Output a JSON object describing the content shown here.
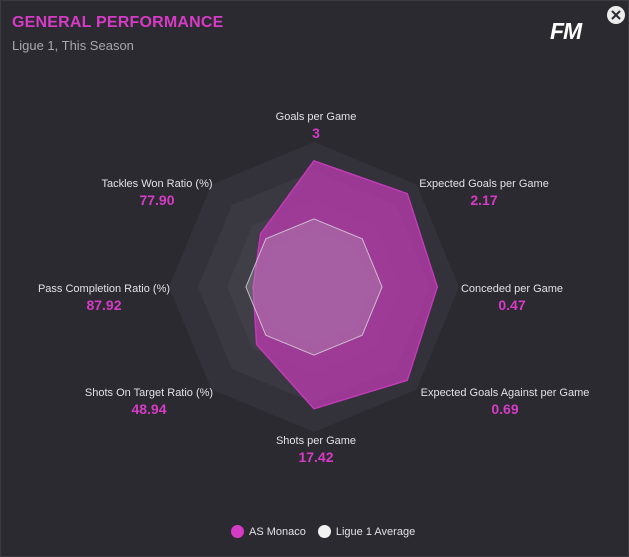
{
  "header": {
    "title": "GENERAL PERFORMANCE",
    "subtitle": "Ligue 1, This Season",
    "logo": "FM",
    "close_icon": "close-icon"
  },
  "colors": {
    "accent": "#d63bc6",
    "club_fill": "#c23ab6",
    "average_fill": "#b9b8bf",
    "background": "#2b2a30"
  },
  "metrics": [
    {
      "label": "Goals per Game",
      "value": "3",
      "club_level": 0.87,
      "avg_level": 0.47
    },
    {
      "label": "Expected Goals per Game",
      "value": "2.17",
      "club_level": 0.91,
      "avg_level": 0.47
    },
    {
      "label": "Conceded per Game",
      "value": "0.47",
      "club_level": 0.85,
      "avg_level": 0.47
    },
    {
      "label": "Expected Goals Against per Game",
      "value": "0.69",
      "club_level": 0.91,
      "avg_level": 0.47
    },
    {
      "label": "Shots per Game",
      "value": "17.42",
      "club_level": 0.84,
      "avg_level": 0.47
    },
    {
      "label": "Shots On Target Ratio (%)",
      "value": "48.94",
      "club_level": 0.56,
      "avg_level": 0.47
    },
    {
      "label": "Pass Completion Ratio (%)",
      "value": "87.92",
      "club_level": 0.42,
      "avg_level": 0.47
    },
    {
      "label": "Tackles Won Ratio (%)",
      "value": "77.90",
      "club_level": 0.52,
      "avg_level": 0.47
    }
  ],
  "legend": [
    {
      "name": "AS Monaco",
      "color": "#d63bc6"
    },
    {
      "name": "Ligue 1 Average",
      "color": "#f2f2f2"
    }
  ]
}
